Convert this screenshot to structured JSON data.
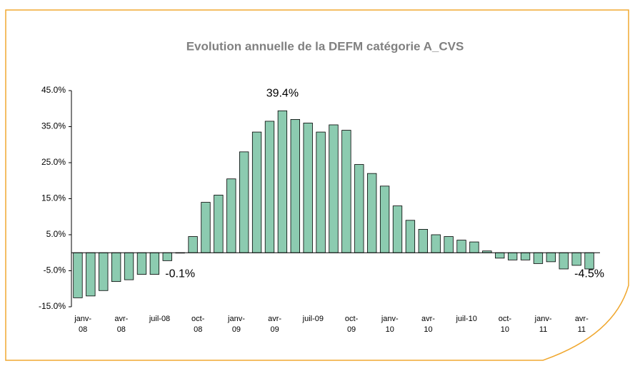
{
  "chart_data": {
    "type": "bar",
    "title": "Evolution annuelle de la DEFM catégorie A_CVS",
    "categories": [
      "janv-08",
      null,
      null,
      "avr-08",
      null,
      null,
      "juil-08",
      null,
      null,
      "oct-08",
      null,
      null,
      "janv-09",
      null,
      null,
      "avr-09",
      null,
      null,
      "juil-09",
      null,
      null,
      "oct-09",
      null,
      null,
      "janv-10",
      null,
      null,
      "avr-10",
      null,
      null,
      "juil-10",
      null,
      null,
      "oct-10",
      null,
      null,
      "janv-11",
      null,
      null,
      "avr-11",
      null
    ],
    "values": [
      -12.5,
      -12,
      -10.5,
      -8,
      -7.5,
      -6,
      -6,
      -2.2,
      -0.1,
      4.5,
      14,
      16,
      20.5,
      28,
      33.5,
      36.5,
      39.4,
      37,
      36,
      33.5,
      35.5,
      34,
      24.5,
      22,
      18.5,
      13,
      9,
      6.5,
      5,
      4.5,
      3.5,
      3,
      0.5,
      -1.5,
      -2,
      -2,
      -3,
      -2.5,
      -4.5,
      -3.5,
      -4.5
    ],
    "value_labels": [
      null,
      null,
      null,
      null,
      null,
      null,
      null,
      null,
      "-0.1%",
      null,
      null,
      null,
      null,
      null,
      null,
      null,
      "39.4%",
      null,
      null,
      null,
      null,
      null,
      null,
      null,
      null,
      null,
      null,
      null,
      null,
      null,
      null,
      null,
      null,
      null,
      null,
      null,
      null,
      null,
      null,
      null,
      "-4.5%"
    ],
    "color": "#8ccbb0",
    "ylim": [
      -15,
      45
    ],
    "yticks": [
      {
        "value": -15,
        "label": "-15.0%"
      },
      {
        "value": -5,
        "label": "-5.0%"
      },
      {
        "value": 5,
        "label": "5.0%"
      },
      {
        "value": 15,
        "label": "15.0%"
      },
      {
        "value": 25,
        "label": "25.0%"
      },
      {
        "value": 35,
        "label": "35.0%"
      },
      {
        "value": 45,
        "label": "45.0%"
      }
    ],
    "grid": false
  }
}
